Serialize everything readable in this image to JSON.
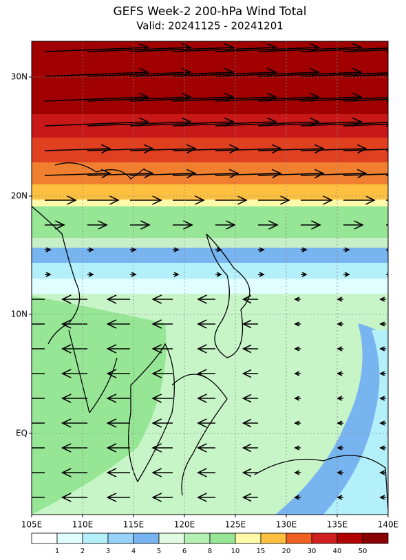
{
  "title": "GEFS Week-2 200-hPa Wind Total",
  "subtitle": "Valid: 20241125 - 20241201",
  "lon_labels": [
    "105E",
    "110E",
    "115E",
    "120E",
    "125E",
    "130E",
    "135E",
    "140E"
  ],
  "lat_labels": [
    "30N",
    "20N",
    "10N",
    "EQ"
  ],
  "colorbar": {
    "labels": [
      1,
      2,
      3,
      4,
      5,
      6,
      8,
      10,
      15,
      20,
      30,
      40,
      50
    ],
    "colors": [
      "#ffffff",
      "#e1ffff",
      "#b4f0fa",
      "#96d2fa",
      "#78b4f0",
      "#e1fae1",
      "#b4f0b4",
      "#96e696",
      "#fffaaa",
      "#ffc040",
      "#f06020",
      "#d02020",
      "#b00000",
      "#8a0000"
    ]
  }
}
